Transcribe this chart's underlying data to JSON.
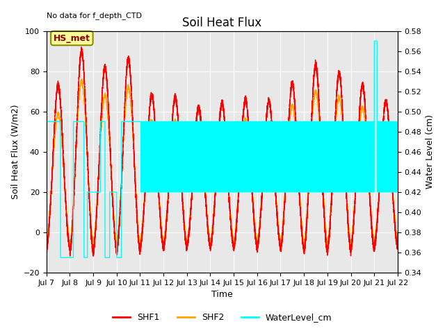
{
  "title": "Soil Heat Flux",
  "top_left_text": "No data for f_depth_CTD",
  "box_label": "HS_met",
  "xlabel": "Time",
  "ylabel_left": "Soil Heat Flux (W/m2)",
  "ylabel_right": "Water Level (cm)",
  "ylim_left": [
    -20,
    100
  ],
  "ylim_right": [
    0.34,
    0.58
  ],
  "x_tick_labels": [
    "Jul 7",
    "Jul 8",
    "Jul 9",
    "Jul 10",
    "Jul 11",
    "Jul 12",
    "Jul 13",
    "Jul 14",
    "Jul 15",
    "Jul 16",
    "Jul 17",
    "Jul 18",
    "Jul 19",
    "Jul 20",
    "Jul 21",
    "Jul 22"
  ],
  "shf1_color": "#FF0000",
  "shf2_color": "#FFA500",
  "water_color": "#00FFFF",
  "legend_entries": [
    "SHF1",
    "SHF2",
    "WaterLevel_cm"
  ],
  "plot_bg": "#E8E8E8",
  "shf1_peaks": [
    73,
    90,
    82,
    86,
    68,
    67,
    62,
    64,
    66,
    65,
    74,
    83,
    79,
    73,
    65
  ],
  "shf2_peaks": [
    59,
    75,
    68,
    72,
    55,
    55,
    52,
    53,
    56,
    54,
    63,
    70,
    67,
    62,
    53
  ],
  "water_high": 0.49,
  "water_mid": 0.42,
  "water_low": 0.355,
  "water_spike": 0.57,
  "n_days": 15
}
